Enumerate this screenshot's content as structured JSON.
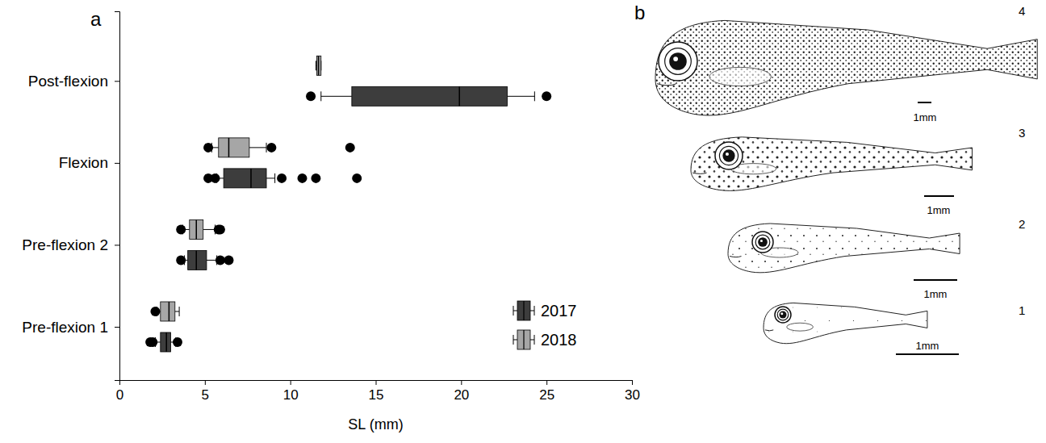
{
  "chart_data": {
    "type": "box",
    "orientation": "horizontal",
    "panel_label": "a",
    "x_label": "SL (mm)",
    "categories": [
      "Pre-flexion 1",
      "Pre-flexion 2",
      "Flexion",
      "Post-flexion"
    ],
    "xlim": [
      0,
      30
    ],
    "xticks": [
      0,
      5,
      10,
      15,
      20,
      25,
      30
    ],
    "grid": false,
    "legend": "lower right",
    "series": [
      {
        "name": "2017",
        "color": "#3d3d3d",
        "min": [
          2.1,
          3.8,
          5.7,
          11.8
        ],
        "q1": [
          2.4,
          4.0,
          6.1,
          13.6
        ],
        "median": [
          2.75,
          4.5,
          7.7,
          19.9
        ],
        "q3": [
          3.0,
          5.1,
          8.6,
          22.7
        ],
        "max": [
          3.3,
          5.7,
          9.1,
          24.3
        ],
        "outliers": [
          [
            1.8,
            1.95,
            3.4
          ],
          [
            3.6,
            5.9,
            6.4
          ],
          [
            5.2,
            5.6,
            9.5,
            10.7,
            11.5,
            13.9
          ],
          [
            11.2,
            25.0
          ]
        ]
      },
      {
        "name": "2018",
        "color": "#a6a6a6",
        "min": [
          2.2,
          3.7,
          5.4,
          11.5
        ],
        "q1": [
          2.4,
          4.1,
          5.8,
          11.55
        ],
        "median": [
          2.9,
          4.5,
          6.4,
          11.65
        ],
        "q3": [
          3.25,
          4.9,
          7.6,
          11.8
        ],
        "max": [
          3.5,
          5.6,
          8.6,
          11.8
        ],
        "outliers": [
          [
            2.1
          ],
          [
            3.6,
            5.8,
            5.9
          ],
          [
            5.2,
            8.9,
            13.5
          ],
          []
        ]
      }
    ]
  },
  "illustrations": {
    "label": "b",
    "items": [
      {
        "number": 4,
        "scale_bar": "1mm"
      },
      {
        "number": 3,
        "scale_bar": "1mm"
      },
      {
        "number": 2,
        "scale_bar": "1mm"
      },
      {
        "number": 1,
        "scale_bar": "1mm"
      }
    ]
  }
}
